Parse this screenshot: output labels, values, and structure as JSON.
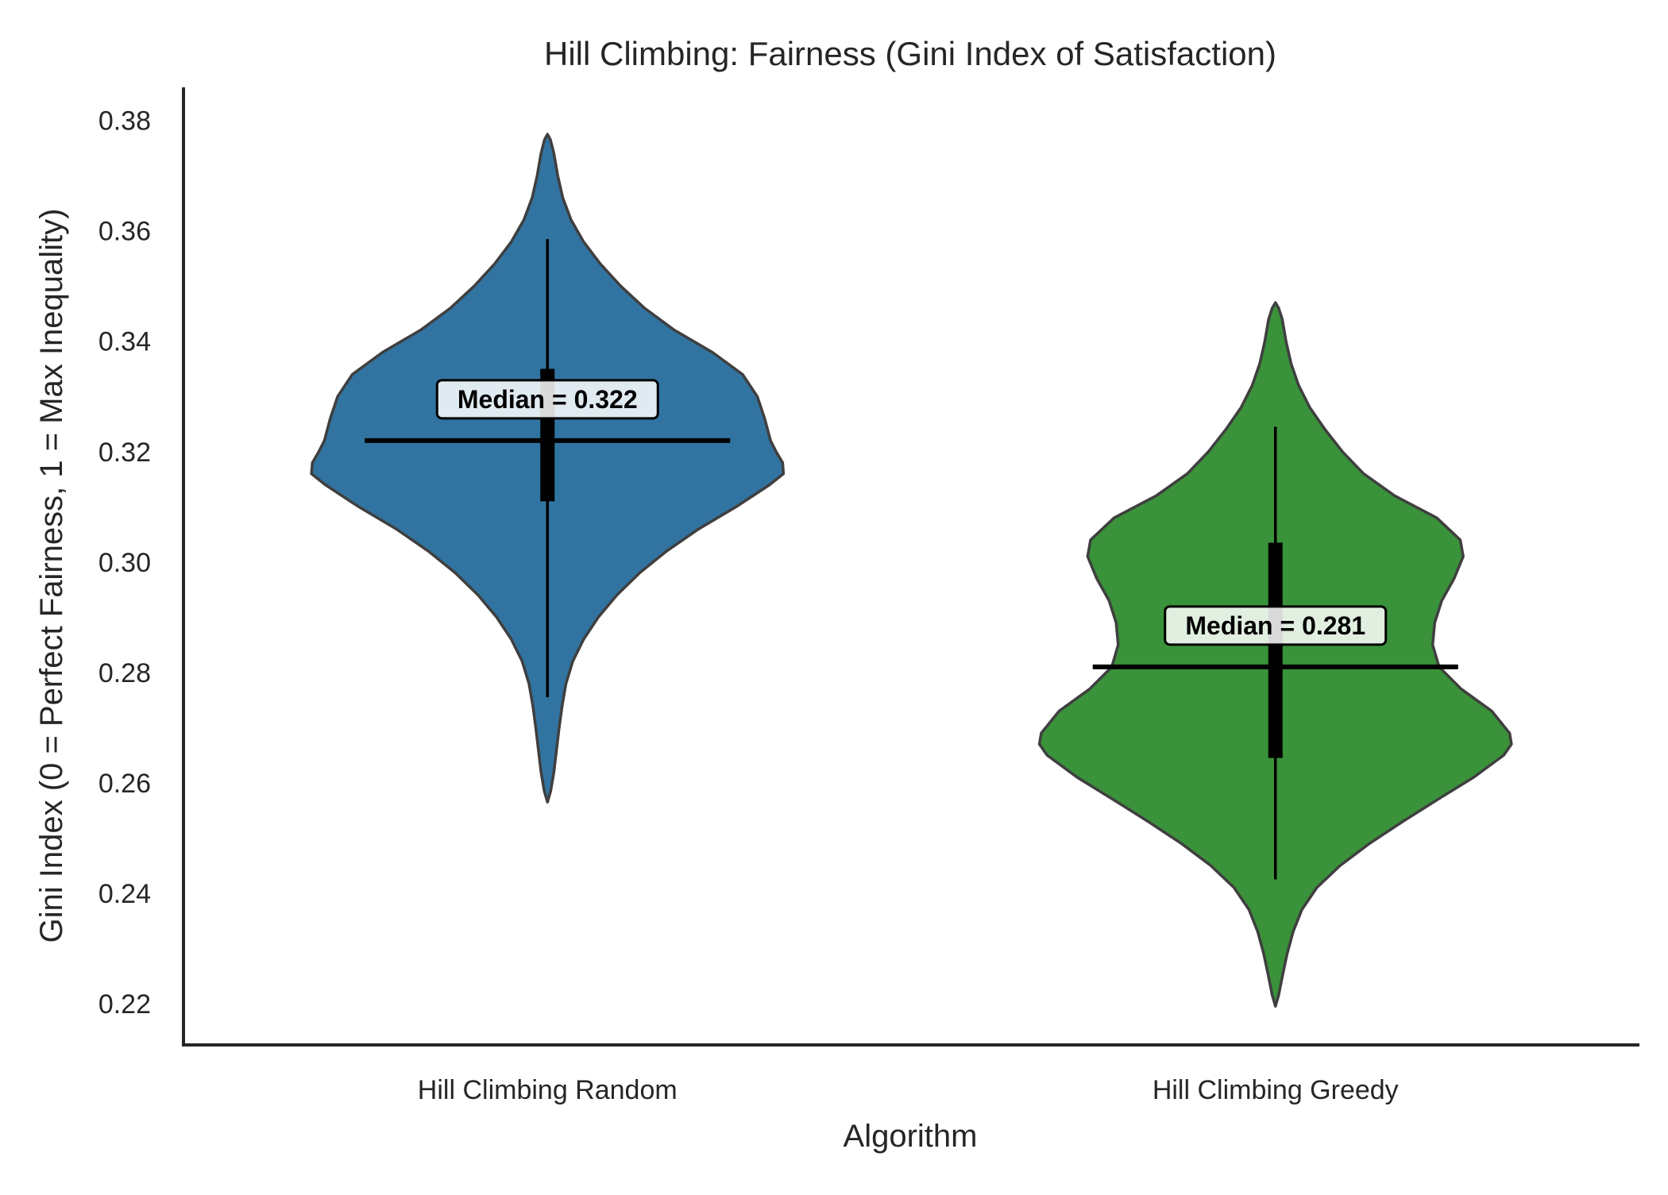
{
  "chart_data": {
    "type": "violin",
    "title": "Hill Climbing: Fairness (Gini Index of Satisfaction)",
    "xlabel": "Algorithm",
    "ylabel": "Gini Index (0 = Perfect Fairness, 1 = Max Inequality)",
    "ylim": [
      0.2125,
      0.386
    ],
    "yticks": [
      "0.22",
      "0.24",
      "0.26",
      "0.28",
      "0.30",
      "0.32",
      "0.34",
      "0.36",
      "0.38"
    ],
    "grid": false,
    "categories": [
      "Hill Climbing Random",
      "Hill Climbing Greedy"
    ],
    "series": [
      {
        "category": "Hill Climbing Random",
        "color": "#3274a1",
        "min": 0.2755,
        "max": 0.3585,
        "q1": 0.311,
        "q3": 0.335,
        "median": 0.322,
        "median_label": "Median = 0.322",
        "density": [
          [
            0.2565,
            0.0
          ],
          [
            0.2585,
            0.011
          ],
          [
            0.262,
            0.022
          ],
          [
            0.266,
            0.031
          ],
          [
            0.27,
            0.04
          ],
          [
            0.274,
            0.05
          ],
          [
            0.278,
            0.063
          ],
          [
            0.282,
            0.086
          ],
          [
            0.286,
            0.123
          ],
          [
            0.29,
            0.173
          ],
          [
            0.294,
            0.236
          ],
          [
            0.298,
            0.313
          ],
          [
            0.302,
            0.406
          ],
          [
            0.306,
            0.515
          ],
          [
            0.31,
            0.642
          ],
          [
            0.314,
            0.756
          ],
          [
            0.316,
            0.803
          ],
          [
            0.318,
            0.8
          ],
          [
            0.32,
            0.778
          ],
          [
            0.322,
            0.759
          ],
          [
            0.326,
            0.739
          ],
          [
            0.33,
            0.714
          ],
          [
            0.334,
            0.664
          ],
          [
            0.338,
            0.561
          ],
          [
            0.342,
            0.432
          ],
          [
            0.346,
            0.33
          ],
          [
            0.35,
            0.249
          ],
          [
            0.354,
            0.18
          ],
          [
            0.358,
            0.123
          ],
          [
            0.362,
            0.08
          ],
          [
            0.366,
            0.052
          ],
          [
            0.37,
            0.035
          ],
          [
            0.374,
            0.022
          ],
          [
            0.3765,
            0.01
          ],
          [
            0.3775,
            0.0
          ]
        ]
      },
      {
        "category": "Hill Climbing Greedy",
        "color": "#3a923a",
        "min": 0.2425,
        "max": 0.3245,
        "q1": 0.2645,
        "q3": 0.3035,
        "median": 0.281,
        "median_label": "Median = 0.281",
        "density": [
          [
            0.2195,
            0.0
          ],
          [
            0.2215,
            0.011
          ],
          [
            0.225,
            0.024
          ],
          [
            0.229,
            0.04
          ],
          [
            0.233,
            0.06
          ],
          [
            0.237,
            0.09
          ],
          [
            0.241,
            0.141
          ],
          [
            0.245,
            0.22
          ],
          [
            0.249,
            0.32
          ],
          [
            0.253,
            0.434
          ],
          [
            0.257,
            0.553
          ],
          [
            0.261,
            0.675
          ],
          [
            0.265,
            0.777
          ],
          [
            0.267,
            0.803
          ],
          [
            0.269,
            0.797
          ],
          [
            0.273,
            0.736
          ],
          [
            0.277,
            0.632
          ],
          [
            0.281,
            0.557
          ],
          [
            0.285,
            0.535
          ],
          [
            0.289,
            0.542
          ],
          [
            0.293,
            0.566
          ],
          [
            0.297,
            0.608
          ],
          [
            0.301,
            0.639
          ],
          [
            0.304,
            0.629
          ],
          [
            0.308,
            0.549
          ],
          [
            0.312,
            0.406
          ],
          [
            0.316,
            0.3
          ],
          [
            0.32,
            0.228
          ],
          [
            0.324,
            0.169
          ],
          [
            0.328,
            0.117
          ],
          [
            0.332,
            0.079
          ],
          [
            0.336,
            0.053
          ],
          [
            0.34,
            0.036
          ],
          [
            0.344,
            0.023
          ],
          [
            0.346,
            0.011
          ],
          [
            0.347,
            0.0
          ]
        ]
      }
    ]
  }
}
